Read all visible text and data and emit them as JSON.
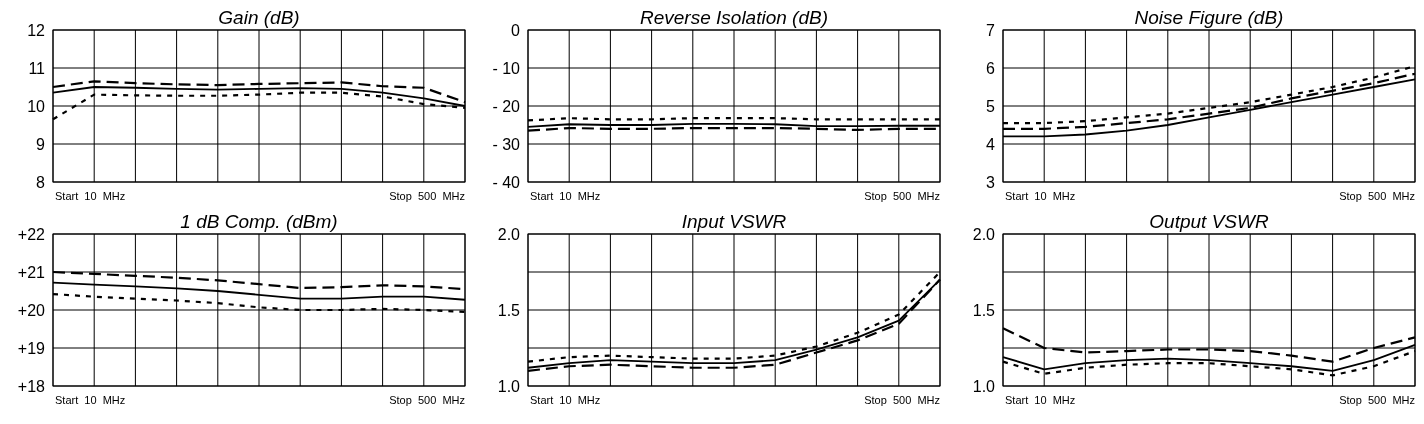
{
  "chart_data": [
    {
      "type": "line",
      "title": "Gain (dB)",
      "categories": [
        null,
        null,
        null,
        null,
        null,
        null,
        null,
        null,
        null,
        null,
        null
      ],
      "ylim": [
        8,
        12
      ],
      "yticks": [
        8,
        9,
        10,
        11,
        12
      ],
      "grid": true,
      "annotations": [
        "Start  10  MHz",
        "Stop  500  MHz"
      ],
      "series": [
        {
          "color": "#000000",
          "line_style": "solid",
          "values": [
            10.35,
            10.5,
            10.48,
            10.45,
            10.43,
            10.45,
            10.47,
            10.45,
            10.35,
            10.2,
            10.0
          ]
        },
        {
          "color": "#000000",
          "line_style": "dashed",
          "values": [
            10.5,
            10.65,
            10.6,
            10.57,
            10.55,
            10.58,
            10.6,
            10.62,
            10.52,
            10.48,
            10.1
          ]
        },
        {
          "color": "#000000",
          "line_style": "dotted",
          "values": [
            9.65,
            10.3,
            10.28,
            10.27,
            10.27,
            10.3,
            10.35,
            10.35,
            10.25,
            10.05,
            9.95
          ]
        }
      ]
    },
    {
      "type": "line",
      "title": "Reverse Isolation (dB)",
      "categories": [
        null,
        null,
        null,
        null,
        null,
        null,
        null,
        null,
        null,
        null,
        null
      ],
      "ylim": [
        -40,
        0
      ],
      "yticks": [
        {
          "value": -40,
          "label": "- 40"
        },
        {
          "value": -30,
          "label": "- 30"
        },
        {
          "value": -20,
          "label": "- 20"
        },
        {
          "value": -10,
          "label": "- 10"
        },
        0
      ],
      "grid": true,
      "annotations": [
        "Start  10  MHz",
        "Stop  500  MHz"
      ],
      "series": [
        {
          "color": "#000000",
          "line_style": "solid",
          "values": [
            -25.5,
            -24.8,
            -25,
            -25,
            -24.7,
            -24.7,
            -24.8,
            -25.3,
            -25.3,
            -25.2,
            -25.2
          ]
        },
        {
          "color": "#000000",
          "line_style": "dashed",
          "values": [
            -26.5,
            -25.8,
            -26,
            -26,
            -25.8,
            -25.8,
            -25.8,
            -26,
            -26.3,
            -26,
            -26
          ]
        },
        {
          "color": "#000000",
          "line_style": "dotted",
          "values": [
            -23.8,
            -23.2,
            -23.5,
            -23.5,
            -23.2,
            -23.2,
            -23.2,
            -23.5,
            -23.5,
            -23.5,
            -23.5
          ]
        }
      ]
    },
    {
      "type": "line",
      "title": "Noise Figure (dB)",
      "categories": [
        null,
        null,
        null,
        null,
        null,
        null,
        null,
        null,
        null,
        null,
        null
      ],
      "ylim": [
        3,
        7
      ],
      "yticks": [
        3,
        4,
        5,
        6,
        7
      ],
      "grid": true,
      "annotations": [
        "Start  10  MHz",
        "Stop  500  MHz"
      ],
      "series": [
        {
          "color": "#000000",
          "line_style": "solid",
          "values": [
            4.2,
            4.2,
            4.25,
            4.35,
            4.5,
            4.7,
            4.9,
            5.1,
            5.3,
            5.5,
            5.7
          ]
        },
        {
          "color": "#000000",
          "line_style": "dashed",
          "values": [
            4.4,
            4.4,
            4.45,
            4.55,
            4.65,
            4.8,
            4.95,
            5.2,
            5.4,
            5.6,
            5.85
          ]
        },
        {
          "color": "#000000",
          "line_style": "dotted",
          "values": [
            4.55,
            4.55,
            4.6,
            4.7,
            4.8,
            4.95,
            5.1,
            5.3,
            5.5,
            5.75,
            6.05
          ]
        }
      ]
    },
    {
      "type": "line",
      "title": "1 dB Comp. (dBm)",
      "categories": [
        null,
        null,
        null,
        null,
        null,
        null,
        null,
        null,
        null,
        null,
        null
      ],
      "ylim": [
        18,
        22
      ],
      "yticks": [
        {
          "value": 18,
          "label": "+18"
        },
        {
          "value": 19,
          "label": "+19"
        },
        {
          "value": 20,
          "label": "+20"
        },
        {
          "value": 21,
          "label": "+21"
        },
        {
          "value": 22,
          "label": "+22"
        }
      ],
      "grid": true,
      "annotations": [
        "Start  10  MHz",
        "Stop  500  MHz"
      ],
      "series": [
        {
          "color": "#000000",
          "line_style": "solid",
          "values": [
            20.72,
            20.67,
            20.62,
            20.57,
            20.5,
            20.4,
            20.3,
            20.3,
            20.35,
            20.35,
            20.27
          ]
        },
        {
          "color": "#000000",
          "line_style": "dashed",
          "values": [
            21.0,
            20.95,
            20.9,
            20.85,
            20.78,
            20.68,
            20.58,
            20.6,
            20.65,
            20.62,
            20.55
          ]
        },
        {
          "color": "#000000",
          "line_style": "dotted",
          "values": [
            20.42,
            20.35,
            20.3,
            20.25,
            20.18,
            20.07,
            20.0,
            20.0,
            20.03,
            20.0,
            19.95
          ]
        }
      ]
    },
    {
      "type": "line",
      "title": "Input VSWR",
      "categories": [
        null,
        null,
        null,
        null,
        null,
        null,
        null,
        null,
        null,
        null,
        null
      ],
      "ylim": [
        1,
        2
      ],
      "yticks": [
        {
          "value": 1,
          "label": "1.0"
        },
        {
          "value": 1.25,
          "label": null
        },
        {
          "value": 1.5,
          "label": "1.5"
        },
        {
          "value": 1.75,
          "label": null
        },
        {
          "value": 2,
          "label": "2.0"
        }
      ],
      "grid": true,
      "annotations": [
        "Start  10  MHz",
        "Stop  500  MHz"
      ],
      "series": [
        {
          "color": "#000000",
          "line_style": "solid",
          "values": [
            1.12,
            1.15,
            1.17,
            1.16,
            1.15,
            1.15,
            1.17,
            1.24,
            1.32,
            1.43,
            1.7
          ]
        },
        {
          "color": "#000000",
          "line_style": "dashed",
          "values": [
            1.1,
            1.13,
            1.14,
            1.13,
            1.12,
            1.12,
            1.14,
            1.22,
            1.3,
            1.41,
            1.7
          ]
        },
        {
          "color": "#000000",
          "line_style": "dotted",
          "values": [
            1.16,
            1.19,
            1.2,
            1.19,
            1.18,
            1.18,
            1.2,
            1.26,
            1.35,
            1.47,
            1.75
          ]
        }
      ]
    },
    {
      "type": "line",
      "title": "Output VSWR",
      "categories": [
        null,
        null,
        null,
        null,
        null,
        null,
        null,
        null,
        null,
        null,
        null
      ],
      "ylim": [
        1,
        2
      ],
      "yticks": [
        {
          "value": 1,
          "label": "1.0"
        },
        {
          "value": 1.25,
          "label": null
        },
        {
          "value": 1.5,
          "label": "1.5"
        },
        {
          "value": 1.75,
          "label": null
        },
        {
          "value": 2,
          "label": "2.0"
        }
      ],
      "grid": true,
      "annotations": [
        "Start  10  MHz",
        "Stop  500  MHz"
      ],
      "series": [
        {
          "color": "#000000",
          "line_style": "solid",
          "values": [
            1.19,
            1.11,
            1.15,
            1.17,
            1.18,
            1.17,
            1.15,
            1.13,
            1.1,
            1.17,
            1.27
          ]
        },
        {
          "color": "#000000",
          "line_style": "dashed",
          "values": [
            1.38,
            1.25,
            1.22,
            1.23,
            1.24,
            1.24,
            1.23,
            1.2,
            1.16,
            1.25,
            1.32
          ]
        },
        {
          "color": "#000000",
          "line_style": "dotted",
          "values": [
            1.16,
            1.08,
            1.12,
            1.14,
            1.15,
            1.15,
            1.13,
            1.11,
            1.07,
            1.13,
            1.23
          ]
        }
      ]
    }
  ]
}
